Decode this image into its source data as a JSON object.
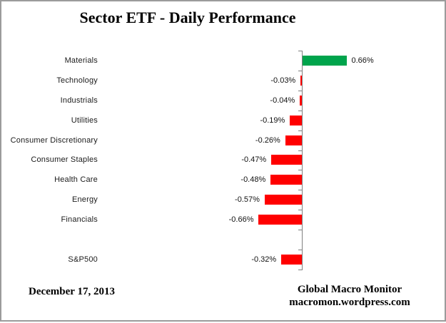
{
  "title": "Sector ETF - Daily Performance",
  "footer": {
    "date": "December 17, 2013",
    "credit_line1": "Global Macro Monitor",
    "credit_line2": "macromon.wordpress.com"
  },
  "colors": {
    "positive": "#00A44C",
    "negative": "#FF0000",
    "axis": "#808080"
  },
  "chart_data": {
    "type": "bar",
    "orientation": "horizontal",
    "title": "Sector ETF - Daily Performance",
    "categories": [
      "Materials",
      "Technology",
      "Industrials",
      "Utilities",
      "Consumer Discretionary",
      "Consumer Staples",
      "Health Care",
      "Energy",
      "Financials",
      "S&P500"
    ],
    "values": [
      0.66,
      -0.03,
      -0.04,
      -0.19,
      -0.26,
      -0.47,
      -0.48,
      -0.57,
      -0.66,
      -0.32
    ],
    "value_labels": [
      "0.66%",
      "-0.03%",
      "-0.04%",
      "-0.19%",
      "-0.26%",
      "-0.47%",
      "-0.48%",
      "-0.57%",
      "-0.66%",
      "-0.32%"
    ],
    "unit": "%",
    "separator_before_index": 9,
    "value_axis_labels_visible": false,
    "grid": false,
    "legend": false
  }
}
